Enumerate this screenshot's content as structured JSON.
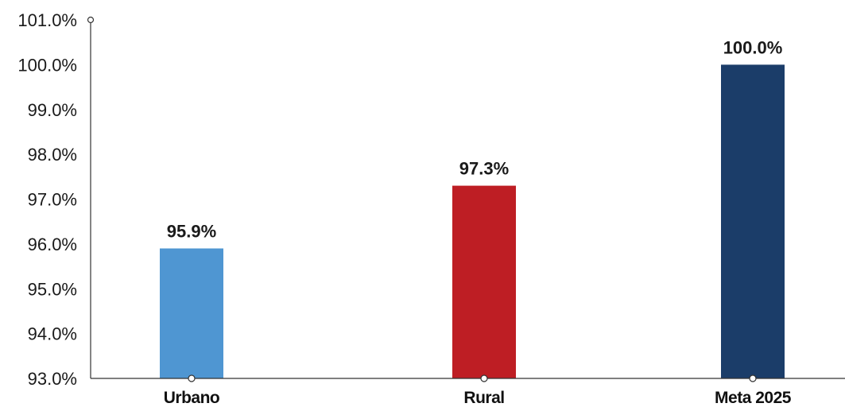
{
  "chart_data": {
    "type": "bar",
    "categories": [
      "Urbano",
      "Rural",
      "Meta 2025"
    ],
    "values": [
      95.9,
      97.3,
      100.0
    ],
    "data_labels": [
      "95.9%",
      "97.3%",
      "100.0%"
    ],
    "colors": [
      "#4f96d2",
      "#be1e24",
      "#1b3d69"
    ],
    "ylim": [
      93.0,
      101.0
    ],
    "yticks": [
      93.0,
      94.0,
      95.0,
      96.0,
      97.0,
      98.0,
      99.0,
      100.0,
      101.0
    ],
    "ytick_labels": [
      "93.0%",
      "94.0%",
      "95.0%",
      "96.0%",
      "97.0%",
      "98.0%",
      "99.0%",
      "100.0%",
      "101.0%"
    ],
    "title": "",
    "xlabel": "",
    "ylabel": "",
    "grid": false,
    "axis_color": "#333333"
  }
}
